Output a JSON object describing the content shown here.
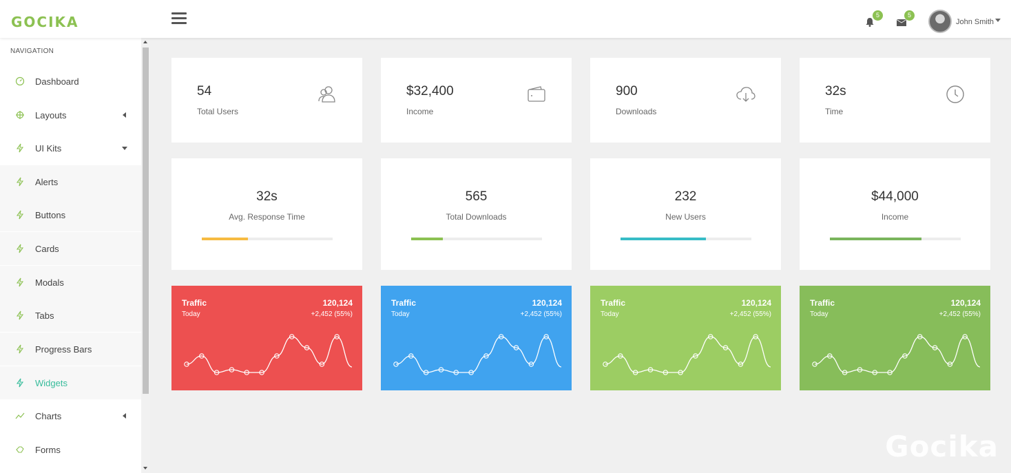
{
  "brand": {
    "logo": "GOCIKA",
    "watermark": "Gocika",
    "accent": "#8cc152"
  },
  "header": {
    "notifications_count": "5",
    "messages_count": "5",
    "user_name": "John Smith"
  },
  "sidebar": {
    "heading": "NAVIGATION",
    "items": [
      {
        "label": "Dashboard",
        "icon": "dashboard-icon"
      },
      {
        "label": "Layouts",
        "icon": "crosshair-icon"
      },
      {
        "label": "UI Kits",
        "icon": "bolt-icon"
      },
      {
        "label": "Alerts",
        "icon": "bolt-icon"
      },
      {
        "label": "Buttons",
        "icon": "bolt-icon"
      },
      {
        "label": "Cards",
        "icon": "bolt-icon"
      },
      {
        "label": "Modals",
        "icon": "bolt-icon"
      },
      {
        "label": "Tabs",
        "icon": "bolt-icon"
      },
      {
        "label": "Progress Bars",
        "icon": "bolt-icon"
      },
      {
        "label": "Widgets",
        "icon": "bolt-icon"
      },
      {
        "label": "Charts",
        "icon": "line-chart-icon"
      },
      {
        "label": "Forms",
        "icon": "hand-icon"
      }
    ]
  },
  "stats": [
    {
      "value": "54",
      "label": "Total Users",
      "icon": "users-icon"
    },
    {
      "value": "$32,400",
      "label": "Income",
      "icon": "wallet-icon"
    },
    {
      "value": "900",
      "label": "Downloads",
      "icon": "cloud-download-icon"
    },
    {
      "value": "32s",
      "label": "Time",
      "icon": "clock-icon"
    }
  ],
  "progress": [
    {
      "value": "32s",
      "label": "Avg. Response Time",
      "percent": 35,
      "color": "#f6bb42"
    },
    {
      "value": "565",
      "label": "Total Downloads",
      "percent": 24,
      "color": "#8cc152"
    },
    {
      "value": "232",
      "label": "New Users",
      "percent": 65,
      "color": "#37bcc6"
    },
    {
      "value": "$44,000",
      "label": "Income",
      "percent": 70,
      "color": "#7ab55c"
    }
  ],
  "traffic": [
    {
      "title": "Traffic",
      "period": "Today",
      "value": "120,124",
      "delta": "+2,452 (55%)",
      "color": "#ed5050"
    },
    {
      "title": "Traffic",
      "period": "Today",
      "value": "120,124",
      "delta": "+2,452 (55%)",
      "color": "#40a3ef"
    },
    {
      "title": "Traffic",
      "period": "Today",
      "value": "120,124",
      "delta": "+2,452 (55%)",
      "color": "#9ccd63"
    },
    {
      "title": "Traffic",
      "period": "Today",
      "value": "120,124",
      "delta": "+2,452 (55%)",
      "color": "#87bd5a"
    }
  ],
  "sparkline": [
    4,
    7,
    1,
    2,
    1,
    1,
    7,
    14,
    10,
    4,
    14,
    3
  ]
}
